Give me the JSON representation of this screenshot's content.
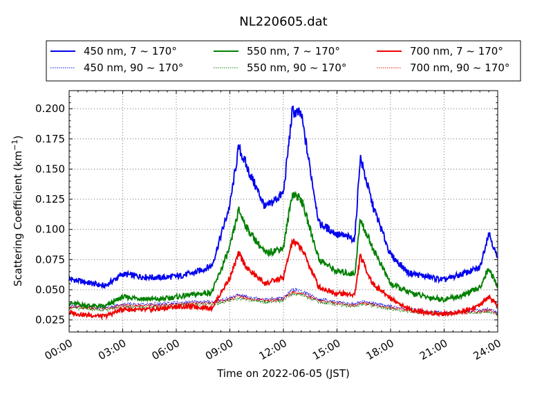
{
  "chart_data": {
    "type": "line",
    "title": "NL220605.dat",
    "xlabel": "Time on 2022-06-05 (JST)",
    "ylabel": "Scattering Coefficient (km",
    "ylabel_sup": "−1",
    "ylabel_close": ")",
    "xlim": [
      0,
      24
    ],
    "ylim": [
      0.015,
      0.215
    ],
    "x_ticks": [
      0,
      3,
      6,
      9,
      12,
      15,
      18,
      21,
      24
    ],
    "x_tick_labels": [
      "00:00",
      "03:00",
      "06:00",
      "09:00",
      "12:00",
      "15:00",
      "18:00",
      "21:00",
      "24:00"
    ],
    "y_ticks": [
      0.025,
      0.05,
      0.075,
      0.1,
      0.125,
      0.15,
      0.175,
      0.2
    ],
    "y_tick_labels": [
      "0.025",
      "0.050",
      "0.075",
      "0.100",
      "0.125",
      "0.150",
      "0.175",
      "0.200"
    ],
    "grid": true,
    "legend_placement": "top, above plot",
    "x": [
      0,
      1,
      2,
      3,
      4,
      5,
      6,
      7,
      8,
      9,
      9.5,
      10,
      11,
      12,
      12.5,
      13,
      14,
      15,
      16,
      16.3,
      17,
      18,
      19,
      20,
      21,
      22,
      23,
      23.5,
      24
    ],
    "series": [
      {
        "name": "450 nm, 7 ~ 170°",
        "color": "#0000ee",
        "style": "solid",
        "values": [
          0.059,
          0.056,
          0.053,
          0.063,
          0.061,
          0.06,
          0.061,
          0.064,
          0.07,
          0.12,
          0.168,
          0.15,
          0.118,
          0.13,
          0.198,
          0.195,
          0.105,
          0.096,
          0.092,
          0.16,
          0.12,
          0.079,
          0.064,
          0.061,
          0.058,
          0.063,
          0.068,
          0.098,
          0.075
        ]
      },
      {
        "name": "550 nm, 7 ~ 170°",
        "color": "#008000",
        "style": "solid",
        "values": [
          0.039,
          0.037,
          0.036,
          0.044,
          0.043,
          0.042,
          0.044,
          0.046,
          0.048,
          0.085,
          0.116,
          0.1,
          0.08,
          0.085,
          0.13,
          0.125,
          0.075,
          0.065,
          0.063,
          0.108,
          0.085,
          0.055,
          0.048,
          0.044,
          0.042,
          0.045,
          0.052,
          0.068,
          0.052
        ]
      },
      {
        "name": "700 nm, 7 ~ 170°",
        "color": "#ee0000",
        "style": "solid",
        "values": [
          0.031,
          0.029,
          0.028,
          0.034,
          0.033,
          0.034,
          0.036,
          0.036,
          0.035,
          0.06,
          0.08,
          0.067,
          0.055,
          0.06,
          0.09,
          0.085,
          0.052,
          0.047,
          0.046,
          0.078,
          0.055,
          0.043,
          0.034,
          0.031,
          0.03,
          0.032,
          0.037,
          0.044,
          0.037
        ]
      },
      {
        "name": "450 nm, 90 ~ 170°",
        "color": "#0000ee",
        "style": "dotted",
        "values": [
          0.037,
          0.036,
          0.035,
          0.038,
          0.038,
          0.038,
          0.039,
          0.04,
          0.04,
          0.043,
          0.046,
          0.044,
          0.042,
          0.043,
          0.05,
          0.049,
          0.042,
          0.04,
          0.038,
          0.04,
          0.039,
          0.036,
          0.034,
          0.032,
          0.031,
          0.032,
          0.033,
          0.034,
          0.031
        ]
      },
      {
        "name": "550 nm, 90 ~ 170°",
        "color": "#008000",
        "style": "dotted",
        "values": [
          0.035,
          0.034,
          0.033,
          0.036,
          0.036,
          0.036,
          0.037,
          0.038,
          0.038,
          0.041,
          0.043,
          0.042,
          0.04,
          0.041,
          0.047,
          0.046,
          0.04,
          0.038,
          0.036,
          0.038,
          0.037,
          0.034,
          0.032,
          0.031,
          0.03,
          0.031,
          0.031,
          0.032,
          0.029
        ]
      },
      {
        "name": "700 nm, 90 ~ 170°",
        "color": "#ee0000",
        "style": "dotted",
        "values": [
          0.036,
          0.035,
          0.034,
          0.037,
          0.037,
          0.037,
          0.038,
          0.039,
          0.039,
          0.042,
          0.045,
          0.043,
          0.041,
          0.042,
          0.048,
          0.047,
          0.041,
          0.039,
          0.037,
          0.039,
          0.038,
          0.035,
          0.033,
          0.031,
          0.03,
          0.031,
          0.032,
          0.033,
          0.03
        ]
      }
    ]
  }
}
